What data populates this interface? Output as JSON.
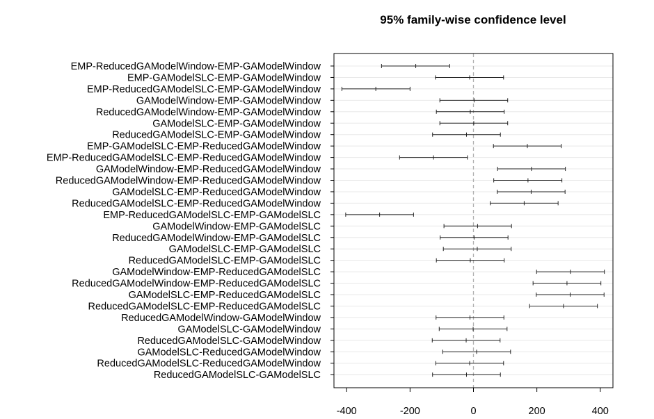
{
  "chart_data": {
    "type": "interval",
    "title": "95% family-wise confidence level",
    "xlim": [
      -440,
      440
    ],
    "x_ticks": [
      -400,
      -200,
      0,
      200,
      400
    ],
    "x_tick_labels": [
      "-400",
      "-200",
      "0",
      "200",
      "400"
    ],
    "reference_line": 0,
    "grid": "horizontal",
    "colors": {
      "interval": "#222222",
      "reference": "#b0b0b0",
      "grid": "#e8e8e8",
      "axis": "#000000"
    },
    "comparisons": [
      {
        "label": "EMP-ReducedGAModelWindow-EMP-GAModelWindow",
        "diff": -182,
        "lwr": -290,
        "upr": -75
      },
      {
        "label": "EMP-GAModelSLC-EMP-GAModelWindow",
        "diff": -12,
        "lwr": -120,
        "upr": 95
      },
      {
        "label": "EMP-ReducedGAModelSLC-EMP-GAModelWindow",
        "diff": -308,
        "lwr": -415,
        "upr": -200
      },
      {
        "label": "GAModelWindow-EMP-GAModelWindow",
        "diff": 2,
        "lwr": -106,
        "upr": 108
      },
      {
        "label": "ReducedGAModelWindow-EMP-GAModelWindow",
        "diff": -10,
        "lwr": -117,
        "upr": 97
      },
      {
        "label": "GAModelSLC-EMP-GAModelWindow",
        "diff": 1,
        "lwr": -106,
        "upr": 108
      },
      {
        "label": "ReducedGAModelSLC-EMP-GAModelWindow",
        "diff": -22,
        "lwr": -129,
        "upr": 85
      },
      {
        "label": "EMP-GAModelSLC-EMP-ReducedGAModelWindow",
        "diff": 170,
        "lwr": 63,
        "upr": 277
      },
      {
        "label": "EMP-ReducedGAModelSLC-EMP-ReducedGAModelWindow",
        "diff": -126,
        "lwr": -233,
        "upr": -19
      },
      {
        "label": "GAModelWindow-EMP-ReducedGAModelWindow",
        "diff": 183,
        "lwr": 76,
        "upr": 290
      },
      {
        "label": "ReducedGAModelWindow-EMP-ReducedGAModelWindow",
        "diff": 172,
        "lwr": 64,
        "upr": 279
      },
      {
        "label": "GAModelSLC-EMP-ReducedGAModelWindow",
        "diff": 182,
        "lwr": 75,
        "upr": 289
      },
      {
        "label": "ReducedGAModelSLC-EMP-ReducedGAModelWindow",
        "diff": 160,
        "lwr": 53,
        "upr": 267
      },
      {
        "label": "EMP-ReducedGAModelSLC-EMP-GAModelSLC",
        "diff": -296,
        "lwr": -403,
        "upr": -189
      },
      {
        "label": "GAModelWindow-EMP-GAModelSLC",
        "diff": 13,
        "lwr": -93,
        "upr": 120
      },
      {
        "label": "ReducedGAModelWindow-EMP-GAModelSLC",
        "diff": 2,
        "lwr": -105,
        "upr": 109
      },
      {
        "label": "GAModelSLC-EMP-GAModelSLC",
        "diff": 12,
        "lwr": -95,
        "upr": 119
      },
      {
        "label": "ReducedGAModelSLC-EMP-GAModelSLC",
        "diff": -10,
        "lwr": -117,
        "upr": 97
      },
      {
        "label": "GAModelWindow-EMP-ReducedGAModelSLC",
        "diff": 306,
        "lwr": 199,
        "upr": 413
      },
      {
        "label": "ReducedGAModelWindow-EMP-ReducedGAModelSLC",
        "diff": 295,
        "lwr": 188,
        "upr": 402
      },
      {
        "label": "GAModelSLC-EMP-ReducedGAModelSLC",
        "diff": 305,
        "lwr": 198,
        "upr": 412
      },
      {
        "label": "ReducedGAModelSLC-EMP-ReducedGAModelSLC",
        "diff": 284,
        "lwr": 177,
        "upr": 391
      },
      {
        "label": "ReducedGAModelWindow-GAModelWindow",
        "diff": -11,
        "lwr": -118,
        "upr": 96
      },
      {
        "label": "GAModelSLC-GAModelWindow",
        "diff": -1,
        "lwr": -108,
        "upr": 106
      },
      {
        "label": "ReducedGAModelSLC-GAModelWindow",
        "diff": -23,
        "lwr": -130,
        "upr": 84
      },
      {
        "label": "GAModelSLC-ReducedGAModelWindow",
        "diff": 10,
        "lwr": -97,
        "upr": 117
      },
      {
        "label": "ReducedGAModelSLC-ReducedGAModelWindow",
        "diff": -12,
        "lwr": -119,
        "upr": 95
      },
      {
        "label": "ReducedGAModelSLC-GAModelSLC",
        "diff": -22,
        "lwr": -129,
        "upr": 85
      }
    ]
  }
}
